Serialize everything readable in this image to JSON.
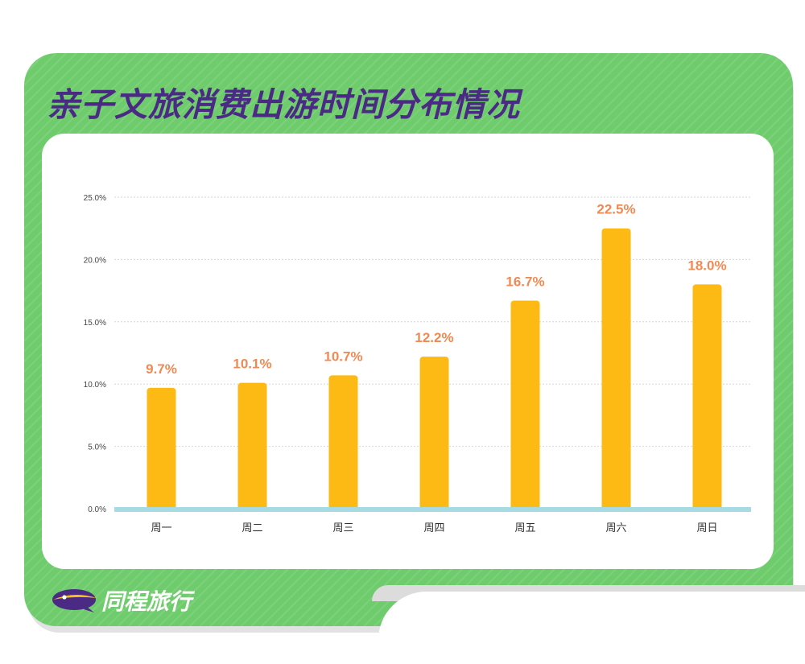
{
  "title": "亲子文旅消费出游时间分布情况",
  "brand": {
    "name": "同程旅行",
    "icon": "tongcheng-logo-icon"
  },
  "colors": {
    "background": "#6fcc6c",
    "title": "#4b2a86",
    "bar": "#fdb914",
    "label": "#f08a55",
    "baseline": "#a6dbe4"
  },
  "chart_data": {
    "type": "bar",
    "categories": [
      "周一",
      "周二",
      "周三",
      "周四",
      "周五",
      "周六",
      "周日"
    ],
    "values": [
      9.7,
      10.1,
      10.7,
      12.2,
      16.7,
      22.5,
      18.0
    ],
    "data_labels": [
      "9.7%",
      "10.1%",
      "10.7%",
      "12.2%",
      "16.7%",
      "22.5%",
      "18.0%"
    ],
    "yticks": [
      "0.0%",
      "5.0%",
      "10.0%",
      "15.0%",
      "20.0%",
      "25.0%"
    ],
    "ylim": [
      0,
      25
    ],
    "grid": true,
    "legend": "none",
    "xlabel": "",
    "ylabel": ""
  }
}
